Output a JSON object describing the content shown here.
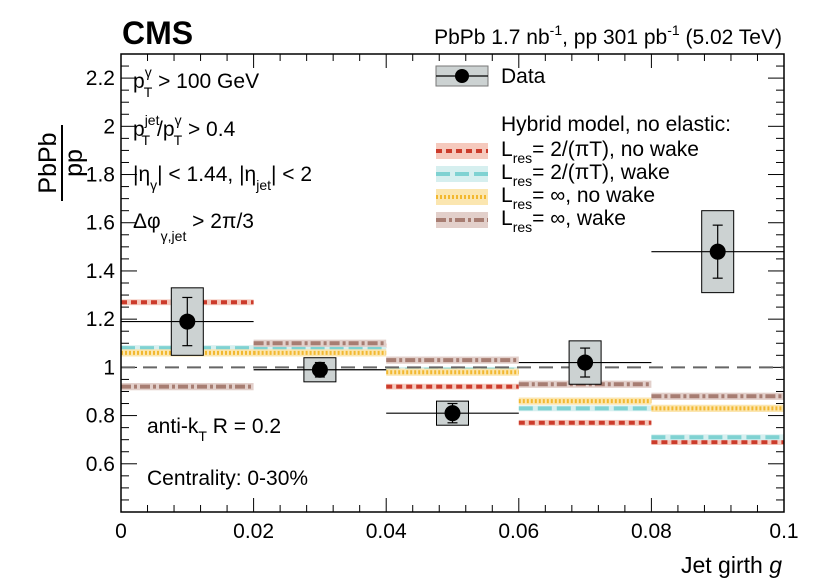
{
  "chart_data": {
    "type": "scatter",
    "experiment": "CMS",
    "luminosity": {
      "pbpb_prefix": "PbPb 1.7 nb",
      "pbpb_exp": "-1",
      "pp_prefix": ", pp 301 pb",
      "pp_exp": "-1",
      "energy": " (5.02 TeV)"
    },
    "ylabel_top": "PbPb",
    "ylabel_bottom": "pp",
    "xlabel": "Jet girth ",
    "xlabel_var": "g",
    "xlim": [
      0,
      0.1
    ],
    "ylim": [
      0.4,
      2.3
    ],
    "xticks": [
      0,
      0.02,
      0.04,
      0.06,
      0.08,
      0.1
    ],
    "xtick_labels": [
      "0",
      "0.02",
      "0.04",
      "0.06",
      "0.08",
      "0.1"
    ],
    "yticks": [
      0.6,
      0.8,
      1,
      1.2,
      1.4,
      1.6,
      1.8,
      2,
      2.2
    ],
    "ytick_labels": [
      "0.6",
      "0.8",
      "1",
      "1.2",
      "1.4",
      "1.6",
      "1.8",
      "2",
      "2.2"
    ],
    "reference_line": 1,
    "cuts": {
      "pt": {
        "p": "p",
        "sub": "T",
        "sup": "γ",
        "rest": " > 100 GeV"
      },
      "ratio": {
        "p1": "p",
        "sub1": "T",
        "sup1": "jet",
        "slash": "/p",
        "sub2": "T",
        "sup2": "γ",
        "rest": " > 0.4"
      },
      "eta": {
        "a": "|η",
        "sub1": "γ",
        "b": "| < 1.44, |η",
        "sub2": "jet",
        "c": "| < 2"
      },
      "dphi": {
        "a": "Δφ",
        "sub": "γ,jet",
        "b": " > 2π/3"
      }
    },
    "algo": {
      "a": "anti-k",
      "sub": "T",
      "b": " R = 0.2"
    },
    "centrality": "Centrality: 0-30%",
    "legend": {
      "data": "Data",
      "header": "Hybrid model, no elastic:",
      "models": [
        {
          "a": "L",
          "sub": "res",
          "b": "= 2/(πT), no wake"
        },
        {
          "a": "L",
          "sub": "res",
          "b": "= 2/(πT), wake"
        },
        {
          "a": "L",
          "sub": "res",
          "b": "= ∞, no wake"
        },
        {
          "a": "L",
          "sub": "res",
          "b": "= ∞, wake"
        }
      ]
    },
    "data": {
      "name": "Data",
      "x": [
        0.01,
        0.03,
        0.05,
        0.07,
        0.09
      ],
      "xerr": [
        [
          0.0,
          0.02
        ],
        [
          0.02,
          0.04
        ],
        [
          0.04,
          0.06
        ],
        [
          0.06,
          0.08
        ],
        [
          0.08,
          0.1
        ]
      ],
      "y": [
        1.19,
        0.99,
        0.81,
        1.02,
        1.48
      ],
      "stat_err": [
        0.1,
        0.03,
        0.04,
        0.06,
        0.11
      ],
      "sys_err": [
        0.14,
        0.05,
        0.05,
        0.09,
        0.17
      ]
    },
    "models": [
      {
        "name": "Lres=2/(πT), no wake",
        "color": "#cc3b2b",
        "light": "#f5c9bd",
        "dash": "6,4",
        "bins": [
          [
            0.0,
            0.02
          ],
          [
            0.02,
            0.04
          ],
          [
            0.04,
            0.06
          ],
          [
            0.06,
            0.08
          ],
          [
            0.08,
            0.1
          ]
        ],
        "values": [
          1.27,
          1.09,
          0.92,
          0.77,
          0.69
        ],
        "band": 0.012
      },
      {
        "name": "Lres=2/(πT), wake",
        "color": "#7fd2d2",
        "light": "#d6efef",
        "dash": "14,5",
        "bins": [
          [
            0.0,
            0.02
          ],
          [
            0.02,
            0.04
          ],
          [
            0.04,
            0.06
          ],
          [
            0.06,
            0.08
          ],
          [
            0.08,
            0.1
          ]
        ],
        "values": [
          1.08,
          1.08,
          0.99,
          0.83,
          0.71
        ],
        "band": 0.012
      },
      {
        "name": "Lres=∞, no wake",
        "color": "#f2b830",
        "light": "#fbe6b0",
        "dash": "2,2",
        "bins": [
          [
            0.0,
            0.02
          ],
          [
            0.02,
            0.04
          ],
          [
            0.04,
            0.06
          ],
          [
            0.06,
            0.08
          ],
          [
            0.08,
            0.1
          ]
        ],
        "values": [
          1.06,
          1.06,
          0.98,
          0.86,
          0.83
        ],
        "band": 0.015
      },
      {
        "name": "Lres=∞, wake",
        "color": "#a77d72",
        "light": "#e2cfca",
        "dash": "10,3,3,3",
        "bins": [
          [
            0.0,
            0.02
          ],
          [
            0.02,
            0.04
          ],
          [
            0.04,
            0.06
          ],
          [
            0.06,
            0.08
          ],
          [
            0.08,
            0.1
          ]
        ],
        "values": [
          0.92,
          1.1,
          1.03,
          0.93,
          0.88
        ],
        "band": 0.015
      }
    ]
  }
}
